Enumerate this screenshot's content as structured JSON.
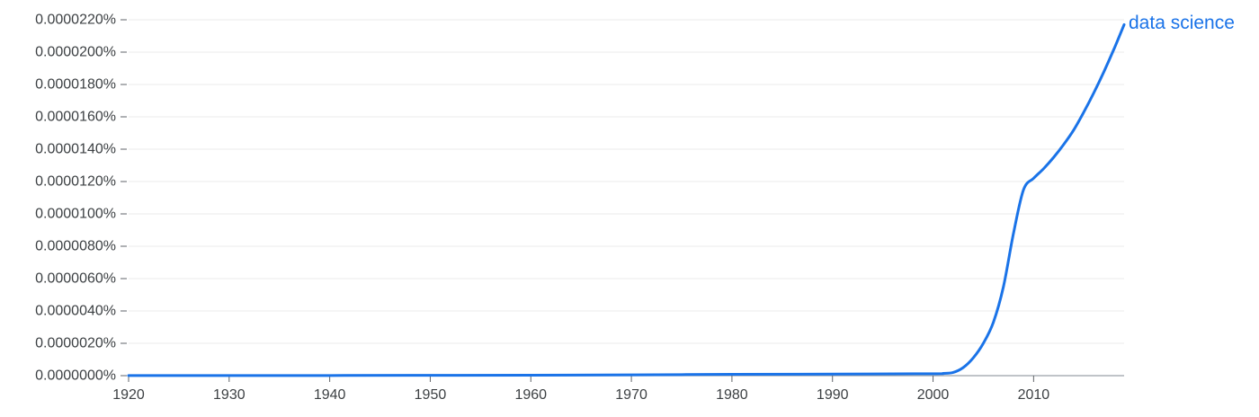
{
  "chart_data": {
    "type": "line",
    "title": "",
    "xlabel": "",
    "ylabel": "",
    "xlim": [
      1920,
      2019
    ],
    "ylim": [
      0,
      2.2e-05
    ],
    "x_ticks": [
      1920,
      1930,
      1940,
      1950,
      1960,
      1970,
      1980,
      1990,
      2000,
      2010
    ],
    "x_tick_labels": [
      "1920",
      "1930",
      "1940",
      "1950",
      "1960",
      "1970",
      "1980",
      "1990",
      "2000",
      "2010"
    ],
    "y_ticks": [
      0,
      2e-06,
      4e-06,
      6e-06,
      8e-06,
      1e-05,
      1.2e-05,
      1.4e-05,
      1.6e-05,
      1.8e-05,
      2e-05,
      2.2e-05
    ],
    "y_tick_labels": [
      "0.0000000%",
      "0.0000020%",
      "0.0000040%",
      "0.0000060%",
      "0.0000080%",
      "0.0000100%",
      "0.0000120%",
      "0.0000140%",
      "0.0000160%",
      "0.0000180%",
      "0.0000200%",
      "0.0000220%"
    ],
    "grid": true,
    "legend": "label at end of line",
    "series": [
      {
        "name": "data science",
        "color": "#1a73e8",
        "x": [
          1920,
          1930,
          1940,
          1950,
          1960,
          1970,
          1980,
          1990,
          2000,
          2001,
          2002,
          2003,
          2004,
          2005,
          2006,
          2007,
          2008,
          2009,
          2010,
          2011,
          2012,
          2013,
          2014,
          2015,
          2016,
          2017,
          2018,
          2019
        ],
        "y": [
          1e-08,
          1e-08,
          1e-08,
          2e-08,
          3e-08,
          5e-08,
          8e-08,
          1e-07,
          1.2e-07,
          1.4e-07,
          2e-07,
          5e-07,
          1.1e-06,
          2e-06,
          3.3e-06,
          5.5e-06,
          8.8e-06,
          1.15e-05,
          1.22e-05,
          1.28e-05,
          1.35e-05,
          1.43e-05,
          1.52e-05,
          1.63e-05,
          1.75e-05,
          1.88e-05,
          2.02e-05,
          2.17e-05
        ]
      }
    ]
  }
}
